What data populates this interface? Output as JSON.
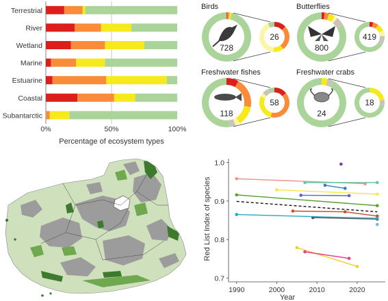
{
  "colors": {
    "red": "#dd1f1c",
    "orange": "#f98c3a",
    "yellow": "#f7ea1c",
    "lightyellow": "#fbf6a6",
    "green": "#abd49a",
    "gray": "#c9c3b9",
    "map_land": "#cfe0bd",
    "map_gray": "#9c9c9c",
    "map_darkgreen": "#3e7a2e",
    "map_midgreen": "#6fa84f"
  },
  "chart_data": [
    {
      "type": "bar",
      "stacked": true,
      "orientation": "horizontal",
      "categories": [
        "Terrestrial",
        "River",
        "Wetland",
        "Marine",
        "Estuarine",
        "Coastal",
        "Subantarctic"
      ],
      "series": [
        {
          "key": "red",
          "values": [
            14,
            22,
            19,
            4,
            5,
            24,
            0
          ]
        },
        {
          "key": "orange",
          "values": [
            14,
            20,
            26,
            19,
            41,
            28,
            3
          ]
        },
        {
          "key": "yellow",
          "values": [
            2,
            23,
            30,
            22,
            46,
            16,
            15
          ]
        },
        {
          "key": "green",
          "values": [
            70,
            35,
            25,
            55,
            8,
            32,
            82
          ]
        }
      ],
      "xtick_labels": [
        "0%",
        "50%",
        "100%"
      ],
      "xlabel": "Percentage of ecosystem types",
      "xlim": [
        0,
        100
      ],
      "grid": "vertical at 50%"
    },
    {
      "type": "donut",
      "panels": [
        {
          "name": "Birds",
          "big_value": "728",
          "big_icon": "bird-icon",
          "small_value": "26",
          "big_slices": {
            "red": 0.5,
            "orange": 1.5,
            "yellow": 1.5,
            "lightyellow": 0,
            "gray": 0,
            "green": 96.5
          },
          "small_slices": {
            "red": 13,
            "orange": 27,
            "yellow": 11,
            "lightyellow": 42,
            "gray": 0,
            "green": 7
          }
        },
        {
          "name": "Butterflies",
          "big_value": "800",
          "big_icon": "butterfly-icon",
          "small_value": "419",
          "big_slices": {
            "red": 2,
            "orange": 3,
            "yellow": 4,
            "lightyellow": 2,
            "gray": 6,
            "green": 83
          },
          "small_slices": {
            "red": 4,
            "orange": 6,
            "yellow": 8,
            "lightyellow": 6,
            "gray": 10,
            "green": 66
          }
        },
        {
          "name": "Freshwater fishes",
          "big_value": "118",
          "big_icon": "fish-icon",
          "small_value": "58",
          "big_slices": {
            "red": 8,
            "orange": 20,
            "yellow": 13,
            "lightyellow": 3,
            "gray": 4,
            "green": 52
          },
          "small_slices": {
            "red": 14,
            "orange": 40,
            "yellow": 28,
            "lightyellow": 4,
            "gray": 7,
            "green": 7
          }
        },
        {
          "name": "Freshwater crabs",
          "big_value": "24",
          "big_icon": "crab-icon",
          "small_value": "18",
          "big_slices": {
            "red": 0,
            "orange": 0,
            "yellow": 4,
            "lightyellow": 0,
            "gray": 4,
            "green": 92
          },
          "small_slices": {
            "red": 0,
            "orange": 0,
            "yellow": 22,
            "lightyellow": 0,
            "gray": 6,
            "green": 72
          }
        }
      ]
    },
    {
      "type": "line",
      "ylabel": "Red List Index of species",
      "xlabel": "Year",
      "xlim": [
        1988,
        2027
      ],
      "ylim": [
        0.69,
        1.01
      ],
      "xticks": [
        1990,
        2000,
        2010,
        2020
      ],
      "yticks": [
        0.7,
        0.8,
        0.9,
        1.0
      ],
      "ytick_labels": [
        "0.7",
        "0.8",
        "0.9",
        "1.0"
      ],
      "series": [
        {
          "color": "#f4908c",
          "points": [
            [
              1990,
              0.958
            ],
            [
              2022,
              0.945
            ]
          ]
        },
        {
          "color": "#64c6a8",
          "points": [
            [
              2007,
              0.948
            ],
            [
              2025,
              0.948
            ]
          ]
        },
        {
          "color": "#2f7fc2",
          "points": [
            [
              2012,
              0.941
            ],
            [
              2017,
              0.933
            ]
          ]
        },
        {
          "color": "#f7e650",
          "points": [
            [
              2000,
              0.929
            ],
            [
              2025,
              0.918
            ]
          ]
        },
        {
          "color": "#5b66c9",
          "points": [
            [
              2006,
              0.915
            ],
            [
              2018,
              0.914
            ]
          ]
        },
        {
          "color": "#59a02c",
          "points": [
            [
              1990,
              0.916
            ],
            [
              2025,
              0.888
            ]
          ]
        },
        {
          "color": "#111111",
          "dashed": true,
          "points": [
            [
              1990,
              0.899
            ],
            [
              2025,
              0.872
            ]
          ]
        },
        {
          "color": "#c0532e",
          "points": [
            [
              2004,
              0.874
            ],
            [
              2017,
              0.872
            ],
            [
              2025,
              0.861
            ]
          ]
        },
        {
          "color": "#555555",
          "points": [
            [
              2009,
              0.857
            ],
            [
              2025,
              0.853
            ]
          ]
        },
        {
          "color": "#27a7c4",
          "points": [
            [
              1990,
              0.865
            ],
            [
              2025,
              0.855
            ]
          ]
        },
        {
          "color": "#7ab6d6",
          "points": [
            [
              2025,
              0.839
            ]
          ]
        },
        {
          "color": "#7d3aa0",
          "points": [
            [
              2016,
              0.996
            ]
          ]
        },
        {
          "color": "#f0d12a",
          "points": [
            [
              2005,
              0.779
            ],
            [
              2020,
              0.73
            ]
          ]
        },
        {
          "color": "#e53f8e",
          "points": [
            [
              2007,
              0.768
            ],
            [
              2018,
              0.751
            ]
          ]
        }
      ]
    }
  ]
}
